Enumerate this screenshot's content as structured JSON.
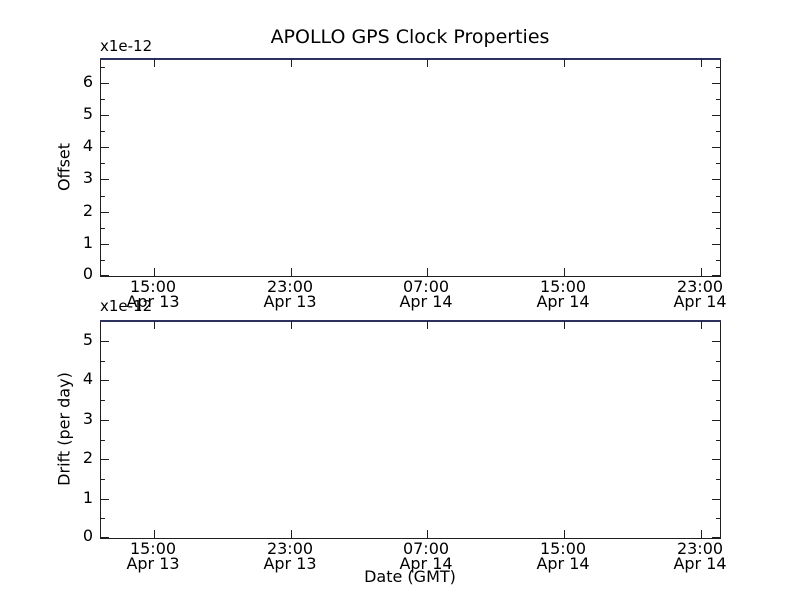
{
  "figure": {
    "title": "APOLLO GPS Clock Properties",
    "xlabel": "Date (GMT)",
    "background_color": "#ffffff",
    "spine_color": "#1f1f1f",
    "top_edge_line_color": "#2c3160",
    "text_color": "#000000"
  },
  "chart_data": [
    {
      "type": "line",
      "title": "APOLLO GPS Clock Properties",
      "ylabel": "Offset",
      "offset_text": "x1e-12",
      "y_unit_multiplier": "1e-12",
      "y_ticks": [
        0,
        1,
        2,
        3,
        4,
        5,
        6
      ],
      "y_minor_step": 0.5,
      "ylim": [
        0,
        6.74
      ],
      "x_ticks": [
        {
          "time": "15:00",
          "date": "Apr 13",
          "frac": 0.0855
        },
        {
          "time": "23:00",
          "date": "Apr 13",
          "frac": 0.3065
        },
        {
          "time": "07:00",
          "date": "Apr 14",
          "frac": 0.5274
        },
        {
          "time": "15:00",
          "date": "Apr 14",
          "frac": 0.7484
        },
        {
          "time": "23:00",
          "date": "Apr 14",
          "frac": 0.9694
        }
      ],
      "series": [],
      "note": "plot area empty; dark blue line along top spine",
      "grid": false,
      "legend": false
    },
    {
      "type": "line",
      "ylabel": "Drift (per day)",
      "xlabel": "Date (GMT)",
      "offset_text": "x1e-12",
      "y_unit_multiplier": "1e-12",
      "y_ticks": [
        0,
        1,
        2,
        3,
        4,
        5
      ],
      "y_minor_step": 0.5,
      "ylim": [
        0,
        5.51
      ],
      "x_ticks": [
        {
          "time": "15:00",
          "date": "Apr 13",
          "frac": 0.0855
        },
        {
          "time": "23:00",
          "date": "Apr 13",
          "frac": 0.3065
        },
        {
          "time": "07:00",
          "date": "Apr 14",
          "frac": 0.5274
        },
        {
          "time": "15:00",
          "date": "Apr 14",
          "frac": 0.7484
        },
        {
          "time": "23:00",
          "date": "Apr 14",
          "frac": 0.9694
        }
      ],
      "series": [],
      "note": "plot area empty; dark blue line along top spine",
      "grid": false,
      "legend": false
    }
  ]
}
